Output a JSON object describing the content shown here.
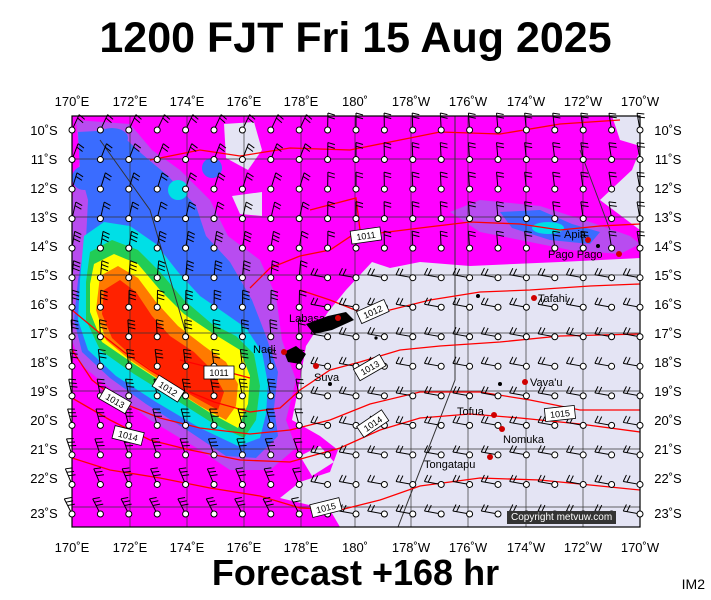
{
  "title": "1200 FJT Fri 15 Aug 2025",
  "footer": "Forecast +168 hr",
  "code": "IM2",
  "copyright": "Copyright metvuw.com",
  "lon_labels": [
    "170˚E",
    "172˚E",
    "174˚E",
    "176˚E",
    "178˚E",
    "180˚",
    "178˚W",
    "176˚W",
    "174˚W",
    "172˚W",
    "170˚W"
  ],
  "lat_labels": [
    "10˚S",
    "11˚S",
    "12˚S",
    "13˚S",
    "14˚S",
    "15˚S",
    "16˚S",
    "17˚S",
    "18˚S",
    "19˚S",
    "20˚S",
    "21˚S",
    "22˚S",
    "23˚S"
  ],
  "places": [
    "Apia",
    "Pago Pago",
    "Tafahi",
    "Labasa",
    "Nadi",
    "Suva",
    "Vava'u",
    "Tofua",
    "Nomuka",
    "Tongatapu"
  ],
  "isobar_labels": [
    "1011",
    "1012",
    "1013",
    "1011",
    "1012",
    "1013",
    "1014",
    "1014",
    "1015",
    "1015"
  ],
  "colors": {
    "land_bg": "#e4e4f4",
    "magenta": "#ff00ff",
    "purple": "#b84cf0",
    "blue": "#3a6cff",
    "cyan": "#00dfe6",
    "green": "#22cc55",
    "yellow": "#ffff00",
    "orange": "#ff7a00",
    "red": "#ff2200",
    "isobar": "#ff0000"
  }
}
